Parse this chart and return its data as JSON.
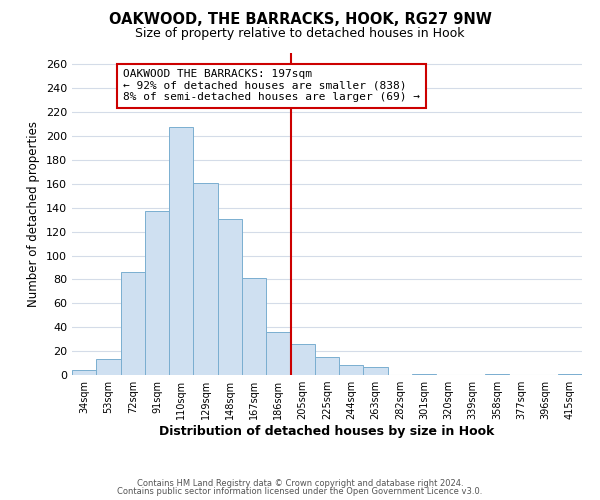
{
  "title": "OAKWOOD, THE BARRACKS, HOOK, RG27 9NW",
  "subtitle": "Size of property relative to detached houses in Hook",
  "xlabel": "Distribution of detached houses by size in Hook",
  "ylabel": "Number of detached properties",
  "categories": [
    "34sqm",
    "53sqm",
    "72sqm",
    "91sqm",
    "110sqm",
    "129sqm",
    "148sqm",
    "167sqm",
    "186sqm",
    "205sqm",
    "225sqm",
    "244sqm",
    "263sqm",
    "282sqm",
    "301sqm",
    "320sqm",
    "339sqm",
    "358sqm",
    "377sqm",
    "396sqm",
    "415sqm"
  ],
  "values": [
    4,
    13,
    86,
    137,
    208,
    161,
    131,
    81,
    36,
    26,
    15,
    8,
    7,
    0,
    1,
    0,
    0,
    1,
    0,
    0,
    1
  ],
  "bar_color": "#cfe0f1",
  "bar_edge_color": "#7aaed0",
  "vline_color": "#cc0000",
  "ylim": [
    0,
    270
  ],
  "yticks": [
    0,
    20,
    40,
    60,
    80,
    100,
    120,
    140,
    160,
    180,
    200,
    220,
    240,
    260
  ],
  "annotation_title": "OAKWOOD THE BARRACKS: 197sqm",
  "annotation_line1": "← 92% of detached houses are smaller (838)",
  "annotation_line2": "8% of semi-detached houses are larger (69) →",
  "annotation_box_color": "#ffffff",
  "annotation_box_edge": "#cc0000",
  "footer1": "Contains HM Land Registry data © Crown copyright and database right 2024.",
  "footer2": "Contains public sector information licensed under the Open Government Licence v3.0.",
  "background_color": "#ffffff",
  "grid_color": "#d4dce8"
}
